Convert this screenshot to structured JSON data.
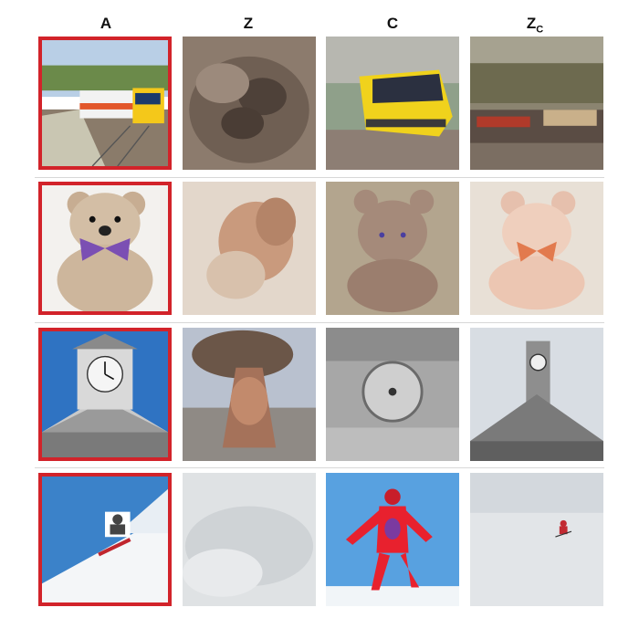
{
  "headers": [
    "A",
    "Z",
    "C",
    "Z"
  ],
  "header_subscript": "C",
  "rows": [
    {
      "subject": "train",
      "cells": [
        "original-photo",
        "model-z-output",
        "model-c-output",
        "model-zc-output"
      ]
    },
    {
      "subject": "teddy-bear",
      "cells": [
        "original-photo",
        "model-z-output",
        "model-c-output",
        "model-zc-output"
      ]
    },
    {
      "subject": "clock-tower",
      "cells": [
        "original-photo",
        "model-z-output",
        "model-c-output",
        "model-zc-output"
      ]
    },
    {
      "subject": "skier",
      "cells": [
        "original-photo",
        "model-z-output",
        "model-c-output",
        "model-zc-output"
      ]
    }
  ],
  "selected_column": "A",
  "colors": {
    "selection_border": "#d2232a",
    "divider": "#d8d8d8"
  }
}
